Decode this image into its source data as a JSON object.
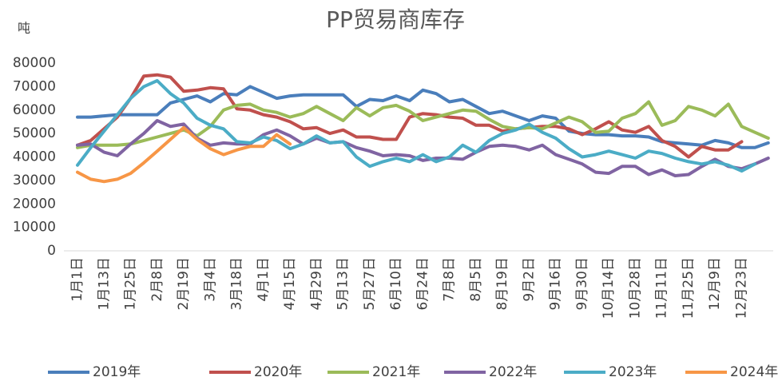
{
  "chart_data": {
    "type": "line",
    "title": "PP贸易商库存",
    "y_label": "吨",
    "categories": [
      "1月1日",
      null,
      "1月13日",
      null,
      "1月25日",
      null,
      "2月8日",
      null,
      "2月19日",
      null,
      "3月4日",
      null,
      "3月18日",
      null,
      "4月1日",
      null,
      "4月15日",
      null,
      "4月29日",
      null,
      "5月13日",
      null,
      "5月27日",
      null,
      "6月10日",
      null,
      "6月24日",
      null,
      "7月8日",
      null,
      "8月5日",
      null,
      "8月19日",
      null,
      "9月2日",
      null,
      "9月16日",
      null,
      "9月30日",
      null,
      "10月14日",
      null,
      "10月28日",
      null,
      "11月11日",
      null,
      "11月25日",
      null,
      "12月9日",
      null,
      "12月23日",
      null,
      null
    ],
    "ylim": [
      0,
      80000
    ],
    "yticks": [
      0,
      10000,
      20000,
      30000,
      40000,
      50000,
      60000,
      70000,
      80000
    ],
    "grid": false,
    "legend": "bottom",
    "series": [
      {
        "name": "2019年",
        "color": "#4a7ebb",
        "values": [
          57000,
          57000,
          57500,
          58000,
          58000,
          58000,
          58000,
          63000,
          64500,
          66000,
          63500,
          67000,
          66500,
          70000,
          67500,
          65000,
          66000,
          66500,
          66500,
          66500,
          66500,
          61500,
          64500,
          64000,
          66000,
          64000,
          68500,
          67000,
          63500,
          64500,
          61500,
          58500,
          59500,
          57500,
          55500,
          57500,
          56500,
          51000,
          50000,
          49500,
          49500,
          49000,
          49000,
          48500,
          46500,
          46000,
          45500,
          45000,
          47000,
          46000,
          44000,
          44000,
          46000
        ]
      },
      {
        "name": "2020年",
        "color": "#c0504d",
        "values": [
          45000,
          47000,
          52000,
          57000,
          65000,
          74500,
          75000,
          74000,
          68000,
          68500,
          69500,
          69000,
          60500,
          60000,
          58000,
          57000,
          55000,
          52000,
          52500,
          50000,
          51500,
          48500,
          48500,
          47500,
          47500,
          57000,
          58500,
          58000,
          57000,
          56500,
          53500,
          53500,
          51000,
          52000,
          52500,
          53000,
          53000,
          52000,
          49500,
          52000,
          55000,
          51500,
          50500,
          53000,
          47000,
          44500,
          40000,
          44500,
          43000,
          43000,
          46500,
          null,
          null
        ]
      },
      {
        "name": "2021年",
        "color": "#9bbb59",
        "values": [
          44000,
          45000,
          45000,
          45000,
          45500,
          47000,
          48500,
          50000,
          51500,
          49000,
          53000,
          60000,
          62000,
          62500,
          60000,
          59000,
          57000,
          58500,
          61500,
          58500,
          55500,
          61000,
          57500,
          61000,
          62000,
          59500,
          55500,
          57000,
          58500,
          60000,
          59500,
          56000,
          53000,
          52000,
          52500,
          52000,
          54500,
          57000,
          55000,
          50500,
          51000,
          56500,
          58500,
          63500,
          53500,
          55500,
          61500,
          60000,
          57500,
          62500,
          53000,
          50500,
          48000
        ]
      },
      {
        "name": "2022年",
        "color": "#8064a2",
        "values": [
          45000,
          45500,
          42000,
          40500,
          45500,
          50000,
          55500,
          53000,
          54000,
          48000,
          45000,
          46000,
          45500,
          45500,
          49500,
          51500,
          49000,
          45500,
          48000,
          46000,
          46500,
          44000,
          42500,
          40500,
          41000,
          40500,
          38500,
          39500,
          39500,
          39000,
          42000,
          44500,
          45000,
          44500,
          43000,
          45000,
          41000,
          39000,
          37000,
          33500,
          33000,
          36000,
          36000,
          32500,
          34500,
          32000,
          32500,
          36000,
          39000,
          36000,
          35000,
          37000,
          39500
        ]
      },
      {
        "name": "2023年",
        "color": "#4bacc6",
        "values": [
          36500,
          44000,
          51000,
          58000,
          65000,
          70000,
          72500,
          67000,
          63000,
          56500,
          53500,
          52000,
          46500,
          46000,
          48500,
          47000,
          43500,
          45500,
          49000,
          46000,
          46500,
          40000,
          36000,
          38000,
          39500,
          38000,
          41000,
          38000,
          40000,
          45000,
          42000,
          47000,
          50000,
          51500,
          54000,
          50500,
          48000,
          43500,
          40000,
          41000,
          42500,
          41000,
          39500,
          42500,
          41500,
          39500,
          38000,
          37000,
          38000,
          36500,
          34000,
          37000,
          null
        ]
      },
      {
        "name": "2024年",
        "color": "#f79646",
        "values": [
          33500,
          30500,
          29500,
          30500,
          33000,
          37500,
          42500,
          47500,
          52500,
          47500,
          43500,
          41000,
          43000,
          44500,
          44500,
          49500,
          45500,
          null,
          null,
          null,
          null,
          null,
          null,
          null,
          null,
          null,
          null,
          null,
          null,
          null,
          null,
          null,
          null,
          null,
          null,
          null,
          null,
          null,
          null,
          null,
          null,
          null,
          null,
          null,
          null,
          null,
          null,
          null,
          null,
          null,
          null,
          null,
          null
        ]
      }
    ]
  }
}
